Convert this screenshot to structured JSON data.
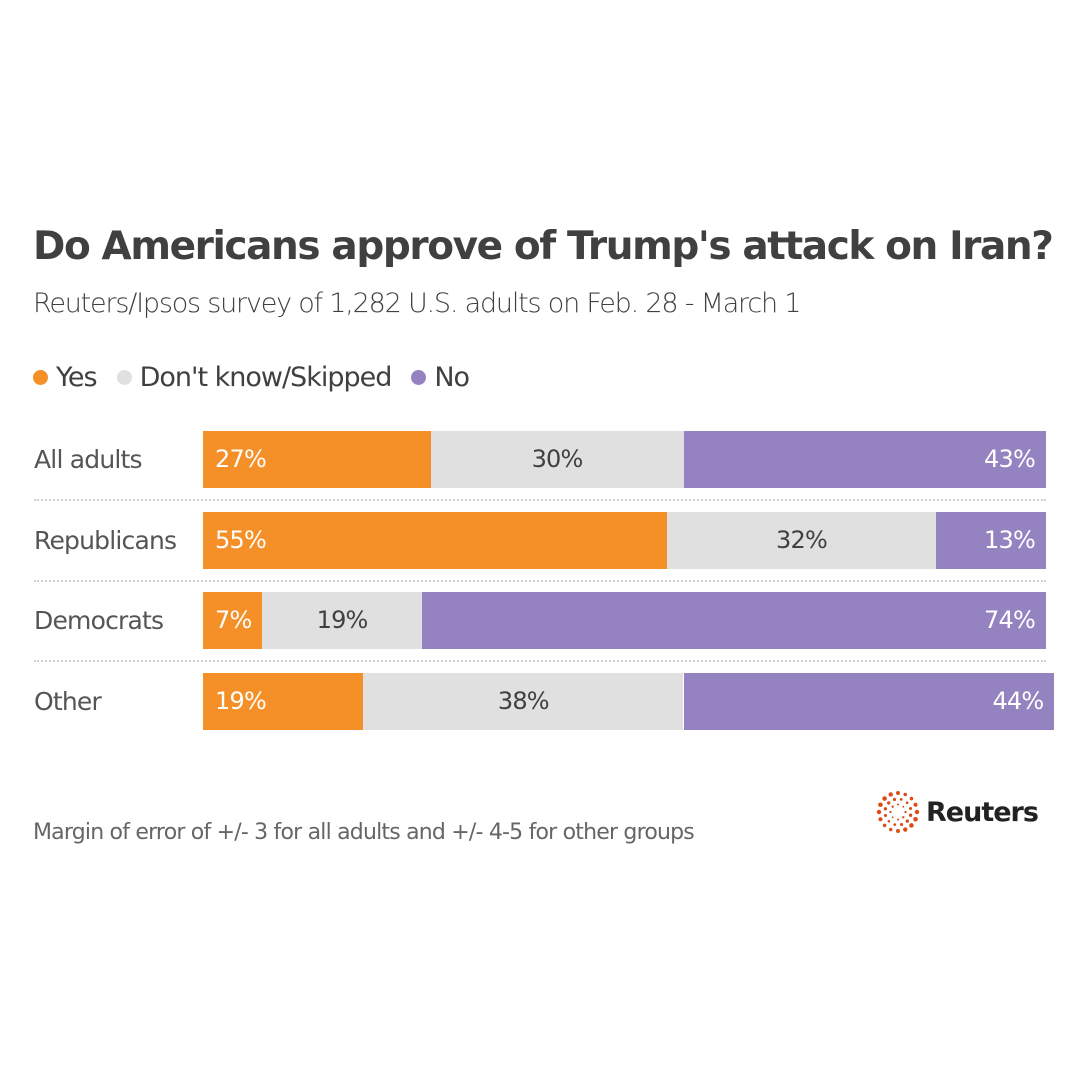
{
  "title": "Do Americans approve of Trump's attack on Iran?",
  "subtitle": "Reuters/Ipsos survey of 1,282 U.S. adults on Feb. 28 - March 1",
  "footnote": "Margin of error of +/- 3 for all adults and +/- 4-5 for other groups",
  "logo": {
    "name": "Reuters",
    "icon": "reuters-dotted-ring-icon",
    "color": "#dc4a15"
  },
  "legend": [
    {
      "label": "Yes",
      "color": "#f58f27"
    },
    {
      "label": "Don't know/Skipped",
      "color": "#e0e0e0"
    },
    {
      "label": "No",
      "color": "#9582c0"
    }
  ],
  "chart_data": {
    "type": "bar",
    "orientation": "horizontal",
    "stacked": true,
    "title": "Do Americans approve of Trump's attack on Iran?",
    "subtitle": "Reuters/Ipsos survey of 1,282 U.S. adults on Feb. 28 - March 1",
    "xlabel": "",
    "ylabel": "",
    "xlim": [
      0,
      100
    ],
    "unit": "%",
    "legend_position": "top-left",
    "grid": false,
    "categories": [
      "All adults",
      "Republicans",
      "Democrats",
      "Other"
    ],
    "series": [
      {
        "name": "Yes",
        "color": "#f58f27",
        "label_color": "#ffffff",
        "label_align": "left",
        "values": [
          27,
          55,
          7,
          19
        ],
        "labels": [
          "27%",
          "55%",
          "7%",
          "19%"
        ]
      },
      {
        "name": "Don't know/Skipped",
        "color": "#e0e0e0",
        "label_color": "#404040",
        "label_align": "center",
        "values": [
          30,
          32,
          19,
          38
        ],
        "labels": [
          "30%",
          "32%",
          "19%",
          "38%"
        ]
      },
      {
        "name": "No",
        "color": "#9582c0",
        "label_color": "#ffffff",
        "label_align": "right",
        "values": [
          43,
          13,
          74,
          44
        ],
        "labels": [
          "43%",
          "13%",
          "74%",
          "44%"
        ]
      }
    ],
    "footnote": "Margin of error of +/- 3 for all adults and +/- 4-5 for other groups"
  }
}
